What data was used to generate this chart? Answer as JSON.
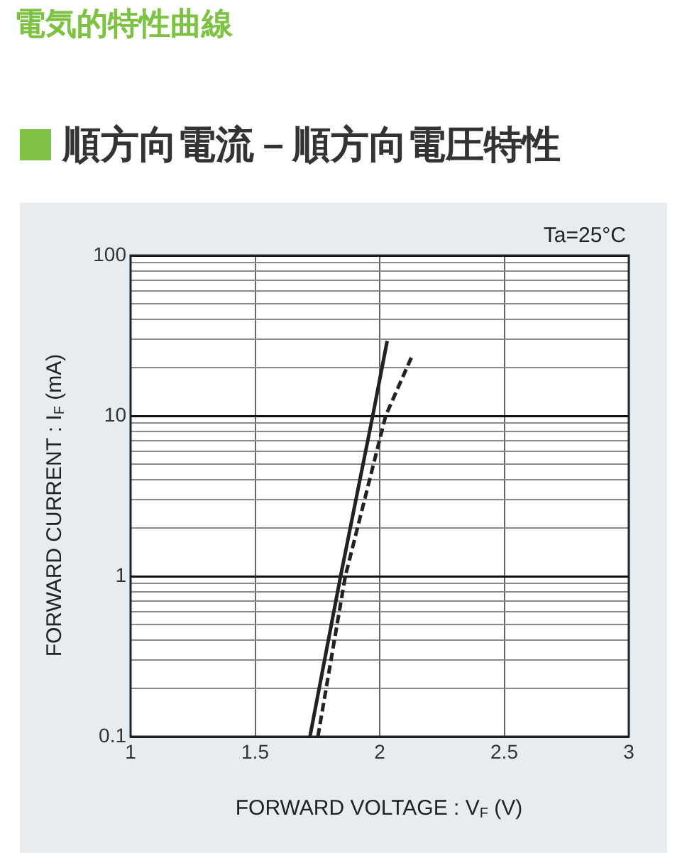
{
  "chart_data": {
    "type": "line",
    "title": "電気的特性曲線",
    "subtitle": "順方向電流－順方向電圧特性",
    "xlabel": "FORWARD VOLTAGE : V$_{F}$ (V)",
    "ylabel": "FORWARD CURRENT : I$_{F}$ (mA)",
    "annotations": [
      "Ta=25°C"
    ],
    "series": [
      {
        "color": "#222222",
        "line_style": "solid",
        "x": [
          1.72,
          1.843,
          1.972,
          2.03
        ],
        "values": [
          0.1,
          1,
          10,
          29.3
        ]
      },
      {
        "color": "#222222",
        "line_style": "dashed",
        "x": [
          1.752,
          1.862,
          2.024,
          2.128
        ],
        "values": [
          0.1,
          1,
          10,
          23.3
        ]
      }
    ],
    "xlim": [
      1,
      3
    ],
    "xticks": [
      1,
      1.5,
      2,
      2.5,
      3
    ],
    "ylim": [
      0.1,
      100
    ],
    "log": "y",
    "yticks": [
      0.1,
      {
        "value": 0.2,
        "label": null
      },
      {
        "value": 0.3,
        "label": null
      },
      {
        "value": 0.4,
        "label": null
      },
      {
        "value": 0.5,
        "label": null
      },
      {
        "value": 0.6,
        "label": null
      },
      {
        "value": 0.7,
        "label": null
      },
      {
        "value": 0.8,
        "label": null
      },
      {
        "value": 0.9,
        "label": null
      },
      1,
      {
        "value": 2,
        "label": null
      },
      {
        "value": 3,
        "label": null
      },
      {
        "value": 4,
        "label": null
      },
      {
        "value": 5,
        "label": null
      },
      {
        "value": 6,
        "label": null
      },
      {
        "value": 7,
        "label": null
      },
      {
        "value": 8,
        "label": null
      },
      {
        "value": 9,
        "label": null
      },
      10,
      {
        "value": 20,
        "label": null
      },
      {
        "value": 30,
        "label": null
      },
      {
        "value": 40,
        "label": null
      },
      {
        "value": 50,
        "label": null
      },
      {
        "value": 60,
        "label": null
      },
      {
        "value": 70,
        "label": null
      },
      {
        "value": 80,
        "label": null
      },
      {
        "value": 90,
        "label": null
      },
      100
    ],
    "grid": true,
    "legend": false,
    "marker": "none"
  }
}
